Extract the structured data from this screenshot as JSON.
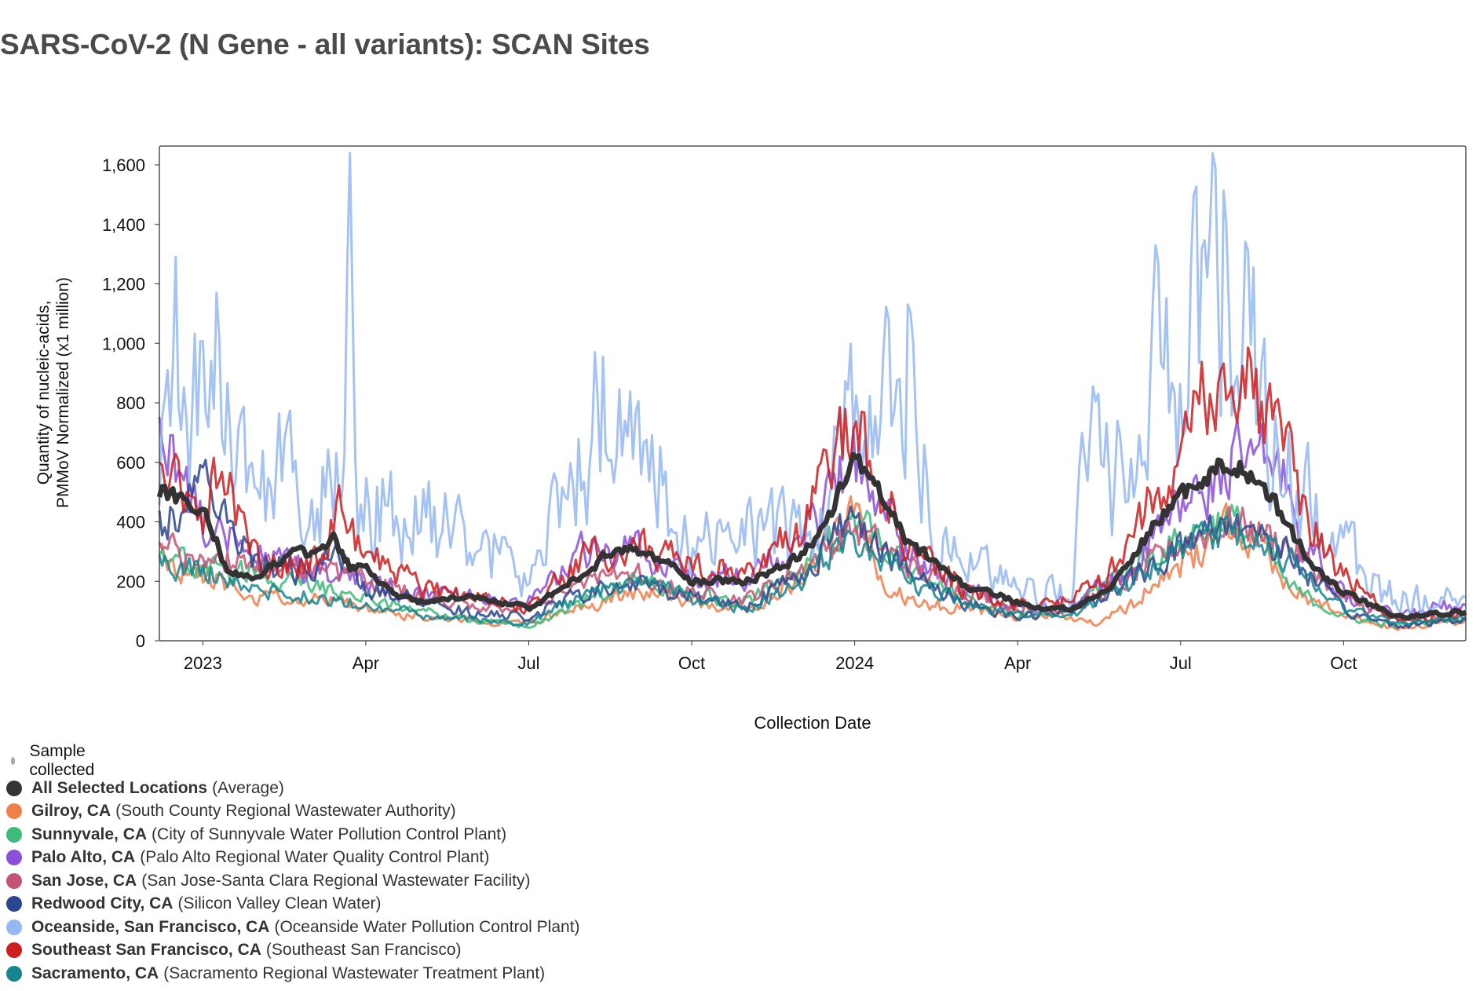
{
  "page": {
    "title": "SARS-CoV-2 (N Gene - all variants): SCAN Sites",
    "sample_legend": "Sample collected"
  },
  "chart_data": {
    "type": "line",
    "title": "SARS-CoV-2 (N Gene - all variants): SCAN Sites",
    "xlabel": "Collection Date",
    "ylabel_lines": [
      "Quantity of nucleic-acids,",
      "PMMoV Normalized (x1 million)"
    ],
    "ylim": [
      0,
      1650
    ],
    "yticks": [
      0,
      200,
      400,
      600,
      800,
      1000,
      1200,
      1400,
      1600
    ],
    "ytick_labels": [
      "0",
      "200",
      "400",
      "600",
      "800",
      "1,000",
      "1,200",
      "1,400",
      "1,600"
    ],
    "xlim_month_index": [
      -0.8,
      23.25
    ],
    "xticks": [
      {
        "label": "2023",
        "m": 0
      },
      {
        "label": "Apr",
        "m": 3
      },
      {
        "label": "Jul",
        "m": 6
      },
      {
        "label": "Oct",
        "m": 9
      },
      {
        "label": "2024",
        "m": 12
      },
      {
        "label": "Apr",
        "m": 15
      },
      {
        "label": "Jul",
        "m": 18
      },
      {
        "label": "Oct",
        "m": 21
      }
    ],
    "x_unit_note": "x values are months since Jan 2023",
    "series": [
      {
        "name": "Gilroy, CA",
        "facility": "(South County Regional Wastewater Authority)",
        "color": "#f07f4c",
        "seed": 11,
        "noise": 0.28,
        "scale": 0.6,
        "points": [
          [
            -0.8,
            280
          ],
          [
            0,
            220
          ],
          [
            1,
            150
          ],
          [
            2,
            140
          ],
          [
            3,
            110
          ],
          [
            4,
            80
          ],
          [
            5,
            70
          ],
          [
            6,
            60
          ],
          [
            7,
            110
          ],
          [
            8,
            170
          ],
          [
            9,
            130
          ],
          [
            10,
            110
          ],
          [
            11,
            200
          ],
          [
            12,
            450
          ],
          [
            12.5,
            200
          ],
          [
            13,
            130
          ],
          [
            14,
            110
          ],
          [
            15,
            80
          ],
          [
            16,
            80
          ],
          [
            16.5,
            60
          ],
          [
            17,
            110
          ],
          [
            18,
            250
          ],
          [
            18.8,
            380
          ],
          [
            19.5,
            300
          ],
          [
            20,
            180
          ],
          [
            21,
            80
          ],
          [
            22,
            40
          ],
          [
            23.25,
            70
          ]
        ]
      },
      {
        "name": "Sunnyvale, CA",
        "facility": "(City of Sunnyvale Water Pollution Control Plant)",
        "color": "#3ebb7a",
        "seed": 23,
        "noise": 0.25,
        "scale": 0.6,
        "points": [
          [
            -0.8,
            300
          ],
          [
            0,
            250
          ],
          [
            1,
            220
          ],
          [
            2,
            180
          ],
          [
            3,
            150
          ],
          [
            4,
            100
          ],
          [
            5,
            70
          ],
          [
            6,
            50
          ],
          [
            7,
            130
          ],
          [
            8,
            210
          ],
          [
            9,
            150
          ],
          [
            10,
            130
          ],
          [
            11,
            230
          ],
          [
            12,
            420
          ],
          [
            12.8,
            280
          ],
          [
            13,
            220
          ],
          [
            14,
            150
          ],
          [
            15,
            90
          ],
          [
            16,
            100
          ],
          [
            16.6,
            200
          ],
          [
            17,
            240
          ],
          [
            18,
            340
          ],
          [
            18.8,
            420
          ],
          [
            19.5,
            330
          ],
          [
            20,
            180
          ],
          [
            21,
            80
          ],
          [
            22,
            50
          ],
          [
            23.25,
            80
          ]
        ]
      },
      {
        "name": "Palo Alto, CA",
        "facility": "(Palo Alto Regional Water Quality Control Plant)",
        "color": "#8b4fd9",
        "seed": 37,
        "noise": 0.3,
        "scale": 0.6,
        "points": [
          [
            -0.8,
            700
          ],
          [
            0,
            380
          ],
          [
            1,
            280
          ],
          [
            2,
            230
          ],
          [
            3,
            190
          ],
          [
            4,
            160
          ],
          [
            5,
            140
          ],
          [
            6,
            130
          ],
          [
            7,
            300
          ],
          [
            8,
            300
          ],
          [
            9,
            220
          ],
          [
            10,
            210
          ],
          [
            11,
            350
          ],
          [
            12,
            620
          ],
          [
            12.5,
            480
          ],
          [
            13,
            280
          ],
          [
            14,
            180
          ],
          [
            15,
            110
          ],
          [
            16,
            130
          ],
          [
            17,
            220
          ],
          [
            18,
            450
          ],
          [
            19,
            600
          ],
          [
            19.8,
            600
          ],
          [
            20.3,
            320
          ],
          [
            21,
            150
          ],
          [
            22,
            80
          ],
          [
            23.25,
            140
          ]
        ]
      },
      {
        "name": "San Jose, CA",
        "facility": "(San Jose-Santa Clara Regional Wastewater Facility)",
        "color": "#c45475",
        "seed": 41,
        "noise": 0.25,
        "scale": 0.6,
        "points": [
          [
            -0.8,
            330
          ],
          [
            0,
            290
          ],
          [
            1,
            250
          ],
          [
            2,
            240
          ],
          [
            3,
            200
          ],
          [
            4,
            150
          ],
          [
            5,
            120
          ],
          [
            6,
            110
          ],
          [
            7,
            200
          ],
          [
            8,
            220
          ],
          [
            9,
            160
          ],
          [
            10,
            140
          ],
          [
            11,
            240
          ],
          [
            12,
            380
          ],
          [
            13,
            250
          ],
          [
            14,
            170
          ],
          [
            15,
            110
          ],
          [
            16,
            110
          ],
          [
            17,
            200
          ],
          [
            18,
            330
          ],
          [
            19,
            400
          ],
          [
            20,
            320
          ],
          [
            21,
            140
          ],
          [
            22,
            70
          ],
          [
            23.25,
            90
          ]
        ]
      },
      {
        "name": "Redwood City, CA",
        "facility": "(Silicon Valley Clean Water)",
        "color": "#2b4690",
        "seed": 53,
        "noise": 0.28,
        "scale": 0.6,
        "points": [
          [
            -0.8,
            380
          ],
          [
            0,
            520
          ],
          [
            1,
            260
          ],
          [
            2,
            230
          ],
          [
            2.3,
            330
          ],
          [
            3,
            180
          ],
          [
            4,
            140
          ],
          [
            5,
            90
          ],
          [
            6,
            80
          ],
          [
            7,
            160
          ],
          [
            8,
            190
          ],
          [
            9,
            150
          ],
          [
            10,
            120
          ],
          [
            11,
            220
          ],
          [
            12,
            430
          ],
          [
            13,
            220
          ],
          [
            14,
            130
          ],
          [
            15,
            80
          ],
          [
            16,
            100
          ],
          [
            17,
            190
          ],
          [
            18,
            320
          ],
          [
            19,
            420
          ],
          [
            20,
            290
          ],
          [
            21,
            100
          ],
          [
            22,
            50
          ],
          [
            23.25,
            70
          ]
        ]
      },
      {
        "name": "Oceanside, San Francisco, CA",
        "facility": "(Oceanside Water Pollution Control Plant)",
        "color": "#94b8f2",
        "seed": 67,
        "noise": 0.35,
        "scale": 1.0,
        "points": [
          [
            -0.8,
            550
          ],
          [
            -0.5,
            1050
          ],
          [
            0,
            850
          ],
          [
            0.3,
            1050
          ],
          [
            0.5,
            650
          ],
          [
            1,
            450
          ],
          [
            1.5,
            600
          ],
          [
            2,
            480
          ],
          [
            2.6,
            500
          ],
          [
            2.7,
            1380
          ],
          [
            2.8,
            450
          ],
          [
            3,
            460
          ],
          [
            4,
            420
          ],
          [
            5,
            340
          ],
          [
            5.5,
            260
          ],
          [
            6,
            180
          ],
          [
            6.5,
            400
          ],
          [
            7,
            650
          ],
          [
            7.5,
            800
          ],
          [
            8,
            620
          ],
          [
            8.5,
            540
          ],
          [
            9,
            350
          ],
          [
            10,
            350
          ],
          [
            11,
            350
          ],
          [
            11.5,
            400
          ],
          [
            12,
            930
          ],
          [
            12.5,
            800
          ],
          [
            13,
            1060
          ],
          [
            13.4,
            400
          ],
          [
            14,
            280
          ],
          [
            15,
            150
          ],
          [
            16,
            150
          ],
          [
            16.3,
            700
          ],
          [
            16.7,
            550
          ],
          [
            17,
            600
          ],
          [
            17.5,
            1050
          ],
          [
            18,
            900
          ],
          [
            18.5,
            1300
          ],
          [
            19,
            1200
          ],
          [
            19.5,
            800
          ],
          [
            20,
            550
          ],
          [
            21,
            300
          ],
          [
            22,
            140
          ],
          [
            23.25,
            120
          ]
        ]
      },
      {
        "name": "Southeast San Francisco, CA",
        "facility": "(Southeast San Francisco)",
        "color": "#cc1f1f",
        "seed": 79,
        "noise": 0.3,
        "scale": 0.6,
        "points": [
          [
            -0.8,
            560
          ],
          [
            0,
            420
          ],
          [
            0.3,
            600
          ],
          [
            0.6,
            450
          ],
          [
            1,
            260
          ],
          [
            2,
            260
          ],
          [
            2.5,
            450
          ],
          [
            3,
            300
          ],
          [
            4,
            180
          ],
          [
            5,
            150
          ],
          [
            6,
            110
          ],
          [
            7,
            280
          ],
          [
            8,
            320
          ],
          [
            9,
            250
          ],
          [
            10,
            220
          ],
          [
            11,
            380
          ],
          [
            12,
            760
          ],
          [
            12.5,
            500
          ],
          [
            13,
            330
          ],
          [
            14,
            180
          ],
          [
            15,
            120
          ],
          [
            16,
            130
          ],
          [
            17,
            280
          ],
          [
            18,
            700
          ],
          [
            18.6,
            900
          ],
          [
            19.2,
            880
          ],
          [
            19.8,
            720
          ],
          [
            20.3,
            420
          ],
          [
            21,
            220
          ],
          [
            22,
            70
          ],
          [
            23.25,
            90
          ]
        ]
      },
      {
        "name": "Sacramento, CA",
        "facility": "(Sacramento Regional Wastewater Treatment Plant)",
        "color": "#17858f",
        "seed": 97,
        "noise": 0.25,
        "scale": 0.6,
        "points": [
          [
            -0.8,
            260
          ],
          [
            0,
            240
          ],
          [
            1,
            170
          ],
          [
            2,
            150
          ],
          [
            3,
            120
          ],
          [
            4,
            90
          ],
          [
            5,
            70
          ],
          [
            6,
            60
          ],
          [
            7,
            150
          ],
          [
            8,
            200
          ],
          [
            9,
            140
          ],
          [
            10,
            110
          ],
          [
            11,
            200
          ],
          [
            12,
            350
          ],
          [
            13,
            200
          ],
          [
            14,
            130
          ],
          [
            15,
            80
          ],
          [
            16,
            90
          ],
          [
            17,
            180
          ],
          [
            18,
            310
          ],
          [
            19,
            360
          ],
          [
            20,
            280
          ],
          [
            21,
            110
          ],
          [
            22,
            60
          ],
          [
            23.25,
            80
          ]
        ]
      }
    ],
    "average": {
      "name": "All Selected Locations",
      "facility": "(Average)",
      "color": "#333333",
      "seed": 5,
      "noise": 0.12,
      "scale": 0.5,
      "points": [
        [
          -0.8,
          500
        ],
        [
          0,
          440
        ],
        [
          0.5,
          220
        ],
        [
          1,
          220
        ],
        [
          1.5,
          280
        ],
        [
          2,
          300
        ],
        [
          2.4,
          350
        ],
        [
          2.7,
          250
        ],
        [
          3,
          260
        ],
        [
          3.5,
          150
        ],
        [
          4,
          130
        ],
        [
          5,
          150
        ],
        [
          6,
          110
        ],
        [
          6.5,
          160
        ],
        [
          7,
          220
        ],
        [
          7.5,
          300
        ],
        [
          8,
          300
        ],
        [
          8.5,
          260
        ],
        [
          9,
          200
        ],
        [
          10,
          200
        ],
        [
          11,
          280
        ],
        [
          11.5,
          400
        ],
        [
          12,
          620
        ],
        [
          12.5,
          480
        ],
        [
          13,
          330
        ],
        [
          14,
          190
        ],
        [
          15,
          130
        ],
        [
          15.5,
          110
        ],
        [
          16,
          110
        ],
        [
          16.5,
          150
        ],
        [
          17,
          250
        ],
        [
          17.5,
          380
        ],
        [
          18,
          480
        ],
        [
          18.5,
          560
        ],
        [
          19,
          600
        ],
        [
          19.5,
          520
        ],
        [
          20,
          380
        ],
        [
          20.5,
          230
        ],
        [
          21,
          160
        ],
        [
          22,
          80
        ],
        [
          23.25,
          100
        ]
      ]
    }
  }
}
